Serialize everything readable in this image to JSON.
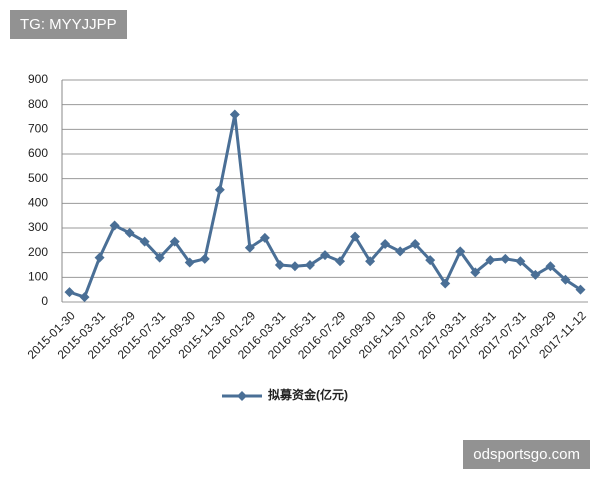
{
  "watermark_top": "TG: MYYJJPP",
  "watermark_bottom": "odsportsgo.com",
  "chart_data": {
    "type": "line",
    "categories": [
      "2015-01-30",
      null,
      "2015-03-31",
      null,
      "2015-05-29",
      null,
      "2015-07-31",
      null,
      "2015-09-30",
      null,
      "2015-11-30",
      null,
      "2016-01-29",
      null,
      "2016-03-31",
      null,
      "2016-05-31",
      null,
      "2016-07-29",
      null,
      "2016-09-30",
      null,
      "2016-11-30",
      null,
      "2017-01-26",
      null,
      "2017-03-31",
      null,
      "2017-05-31",
      null,
      "2017-07-31",
      null,
      "2017-09-29",
      null,
      "2017-11-12"
    ],
    "series": [
      {
        "name": "拟募资金(亿元)",
        "color": "#4a6f96",
        "values": [
          40,
          20,
          180,
          310,
          280,
          245,
          180,
          245,
          160,
          175,
          455,
          760,
          220,
          260,
          150,
          145,
          150,
          190,
          165,
          265,
          165,
          235,
          205,
          235,
          170,
          75,
          205,
          120,
          170,
          175,
          165,
          110,
          145,
          90,
          50
        ]
      }
    ],
    "ylim": [
      0,
      900
    ],
    "yticks": [
      0,
      100,
      200,
      300,
      400,
      500,
      600,
      700,
      800,
      900
    ],
    "grid": true
  }
}
